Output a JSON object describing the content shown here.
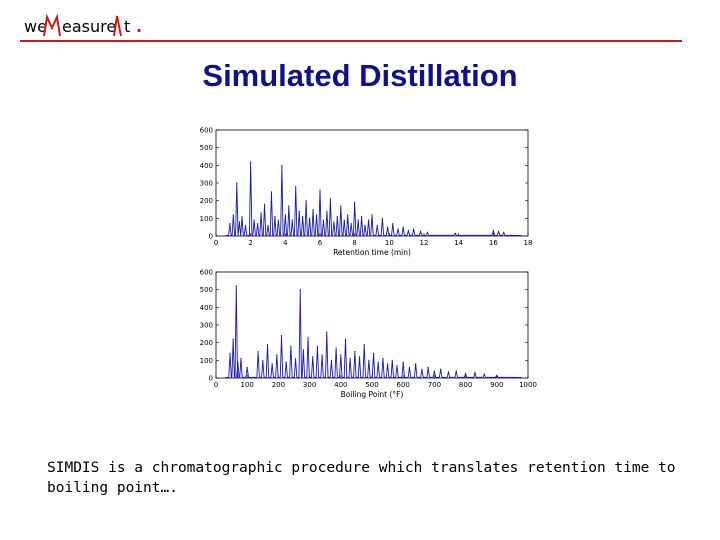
{
  "header": {
    "logo_parts": [
      "we",
      "easure",
      "t"
    ],
    "logo_dot": ".",
    "accent_color": "#cc1a1a"
  },
  "title": "Simulated Distillation",
  "caption": "SIMDIS is a chromatographic procedure which translates retention time to boiling point….",
  "chart_data": [
    {
      "type": "line",
      "xlabel": "Retention time (min)",
      "ylabel": "",
      "title": "",
      "xlim": [
        0,
        18
      ],
      "ylim": [
        0,
        600
      ],
      "xticks": [
        0,
        2,
        4,
        6,
        8,
        10,
        12,
        14,
        16,
        18
      ],
      "yticks": [
        0,
        100,
        200,
        300,
        400,
        500,
        600
      ],
      "color": "#1a1aa8",
      "grid": false,
      "peaks": [
        [
          0.8,
          70
        ],
        [
          1.0,
          120
        ],
        [
          1.2,
          300
        ],
        [
          1.35,
          80
        ],
        [
          1.5,
          110
        ],
        [
          1.7,
          60
        ],
        [
          2.0,
          420
        ],
        [
          2.2,
          90
        ],
        [
          2.4,
          70
        ],
        [
          2.6,
          130
        ],
        [
          2.8,
          180
        ],
        [
          3.0,
          60
        ],
        [
          3.2,
          250
        ],
        [
          3.4,
          110
        ],
        [
          3.6,
          90
        ],
        [
          3.8,
          400
        ],
        [
          4.0,
          120
        ],
        [
          4.2,
          170
        ],
        [
          4.4,
          90
        ],
        [
          4.6,
          280
        ],
        [
          4.8,
          140
        ],
        [
          5.0,
          110
        ],
        [
          5.2,
          200
        ],
        [
          5.4,
          100
        ],
        [
          5.6,
          150
        ],
        [
          5.8,
          120
        ],
        [
          6.0,
          260
        ],
        [
          6.2,
          90
        ],
        [
          6.4,
          140
        ],
        [
          6.6,
          210
        ],
        [
          6.8,
          80
        ],
        [
          7.0,
          110
        ],
        [
          7.2,
          170
        ],
        [
          7.4,
          90
        ],
        [
          7.6,
          120
        ],
        [
          7.8,
          70
        ],
        [
          8.0,
          190
        ],
        [
          8.2,
          90
        ],
        [
          8.4,
          110
        ],
        [
          8.6,
          60
        ],
        [
          8.8,
          90
        ],
        [
          9.0,
          120
        ],
        [
          9.3,
          60
        ],
        [
          9.6,
          100
        ],
        [
          9.9,
          50
        ],
        [
          10.2,
          70
        ],
        [
          10.5,
          40
        ],
        [
          10.8,
          50
        ],
        [
          11.1,
          30
        ],
        [
          11.4,
          40
        ],
        [
          11.8,
          25
        ],
        [
          12.2,
          20
        ],
        [
          13.8,
          15
        ],
        [
          16.0,
          30
        ],
        [
          16.3,
          25
        ],
        [
          16.6,
          20
        ]
      ]
    },
    {
      "type": "line",
      "xlabel": "Boiling Point (°F)",
      "ylabel": "",
      "title": "",
      "xlim": [
        0,
        1000
      ],
      "ylim": [
        0,
        600
      ],
      "xticks": [
        0,
        100,
        200,
        300,
        400,
        500,
        600,
        700,
        800,
        900,
        1000
      ],
      "yticks": [
        0,
        100,
        200,
        300,
        400,
        500,
        600
      ],
      "color": "#1a1aa8",
      "grid": false,
      "peaks": [
        [
          45,
          140
        ],
        [
          55,
          220
        ],
        [
          65,
          520
        ],
        [
          70,
          90
        ],
        [
          80,
          110
        ],
        [
          100,
          60
        ],
        [
          135,
          150
        ],
        [
          150,
          100
        ],
        [
          165,
          190
        ],
        [
          180,
          80
        ],
        [
          195,
          130
        ],
        [
          210,
          240
        ],
        [
          225,
          90
        ],
        [
          240,
          180
        ],
        [
          255,
          110
        ],
        [
          270,
          500
        ],
        [
          280,
          160
        ],
        [
          295,
          230
        ],
        [
          310,
          120
        ],
        [
          325,
          180
        ],
        [
          340,
          130
        ],
        [
          355,
          260
        ],
        [
          370,
          100
        ],
        [
          385,
          170
        ],
        [
          400,
          130
        ],
        [
          415,
          220
        ],
        [
          430,
          110
        ],
        [
          445,
          150
        ],
        [
          460,
          120
        ],
        [
          475,
          190
        ],
        [
          490,
          100
        ],
        [
          505,
          140
        ],
        [
          520,
          90
        ],
        [
          535,
          110
        ],
        [
          550,
          80
        ],
        [
          565,
          100
        ],
        [
          580,
          70
        ],
        [
          600,
          90
        ],
        [
          620,
          60
        ],
        [
          640,
          80
        ],
        [
          660,
          50
        ],
        [
          680,
          60
        ],
        [
          700,
          40
        ],
        [
          720,
          50
        ],
        [
          745,
          35
        ],
        [
          770,
          40
        ],
        [
          800,
          25
        ],
        [
          830,
          30
        ],
        [
          860,
          20
        ],
        [
          900,
          15
        ]
      ]
    }
  ]
}
